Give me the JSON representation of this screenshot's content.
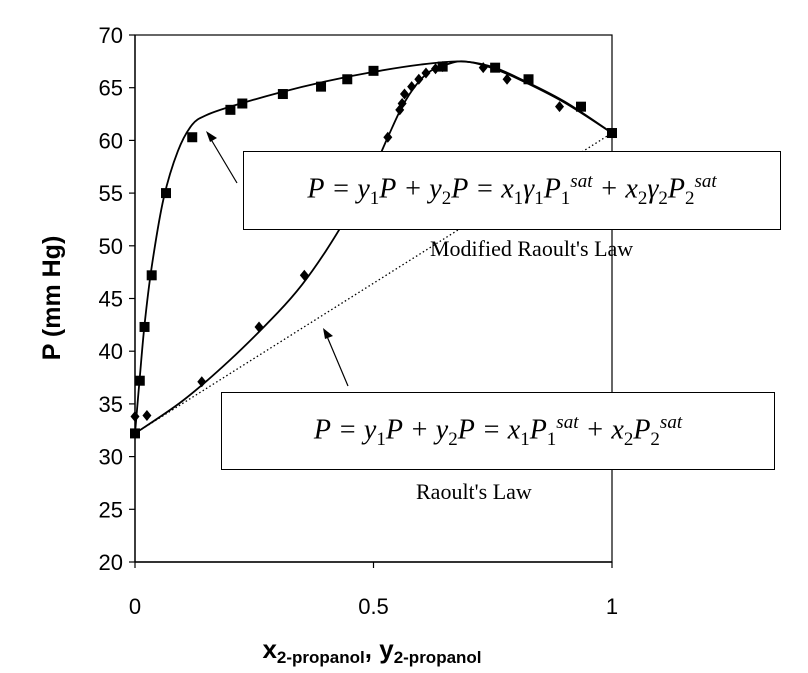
{
  "chart_data": {
    "type": "scatter",
    "ylabel": "P (mm Hg)",
    "xlabel_parts": [
      "x",
      "2-propanol",
      ", ",
      "y",
      "2-propanol"
    ],
    "xlim": [
      0,
      1
    ],
    "ylim": [
      20,
      70
    ],
    "x_ticks": [
      0,
      0.5,
      1
    ],
    "x_tick_labels": [
      "0",
      "0.5",
      "1"
    ],
    "y_ticks": [
      20,
      25,
      30,
      35,
      40,
      45,
      50,
      55,
      60,
      65,
      70
    ],
    "y_tick_labels": [
      "20",
      "25",
      "30",
      "35",
      "40",
      "45",
      "50",
      "55",
      "60",
      "65",
      "70"
    ],
    "grid": false,
    "series": [
      {
        "marker": "square",
        "x": [
          0.0,
          0.01,
          0.02,
          0.035,
          0.065,
          0.12,
          0.2,
          0.225,
          0.31,
          0.39,
          0.445,
          0.5,
          0.645,
          0.755,
          0.825,
          0.935,
          1.0
        ],
        "y": [
          32.2,
          37.2,
          42.3,
          47.2,
          55.0,
          60.3,
          62.9,
          63.5,
          64.4,
          65.1,
          65.8,
          66.6,
          67.0,
          66.9,
          65.8,
          63.2,
          60.7
        ]
      },
      {
        "marker": "diamond",
        "x": [
          0.0,
          0.025,
          0.14,
          0.26,
          0.355,
          0.53,
          0.555,
          0.56,
          0.565,
          0.58,
          0.595,
          0.61,
          0.63,
          0.645,
          0.73,
          0.78,
          0.89,
          1.0
        ],
        "y": [
          33.8,
          33.9,
          37.1,
          42.3,
          47.2,
          60.3,
          62.9,
          63.5,
          64.4,
          65.1,
          65.8,
          66.4,
          66.8,
          67.0,
          66.9,
          65.8,
          63.2,
          60.7
        ]
      },
      {
        "line": "solid",
        "x": [
          0.0,
          0.01,
          0.02,
          0.035,
          0.06,
          0.09,
          0.12,
          0.15,
          0.2,
          0.3,
          0.4,
          0.5,
          0.6,
          0.68,
          0.74,
          0.8,
          0.9,
          1.0
        ],
        "y": [
          32.2,
          37.5,
          42.5,
          48.0,
          54.5,
          59.0,
          61.5,
          62.4,
          63.2,
          64.5,
          65.6,
          66.5,
          67.2,
          67.5,
          67.1,
          66.0,
          63.7,
          60.7
        ]
      },
      {
        "line": "solid",
        "x": [
          0.0,
          0.1,
          0.2,
          0.3,
          0.35,
          0.4,
          0.45,
          0.5,
          0.53,
          0.56,
          0.59,
          0.62,
          0.66,
          0.69,
          0.74,
          0.8,
          0.9,
          1.0
        ],
        "y": [
          32.2,
          35.3,
          39.2,
          43.7,
          46.3,
          49.5,
          53.2,
          57.3,
          60.3,
          63.2,
          65.3,
          66.6,
          67.3,
          67.5,
          67.0,
          65.9,
          63.6,
          60.7
        ]
      },
      {
        "line": "dotted",
        "x": [
          0.0,
          1.0
        ],
        "y": [
          32.2,
          60.7
        ]
      }
    ],
    "annotations": [
      {
        "label": "Modified Raoult's Law",
        "equation": {
          "lhs": "P = y1P + y2P =",
          "rhs": "x1γ1P1sat + x2γ2P2sat"
        }
      },
      {
        "label": "Raoult's Law",
        "equation": {
          "lhs": "P = y1P + y2P =",
          "rhs": "x1P1sat + x2P2sat"
        }
      }
    ]
  }
}
